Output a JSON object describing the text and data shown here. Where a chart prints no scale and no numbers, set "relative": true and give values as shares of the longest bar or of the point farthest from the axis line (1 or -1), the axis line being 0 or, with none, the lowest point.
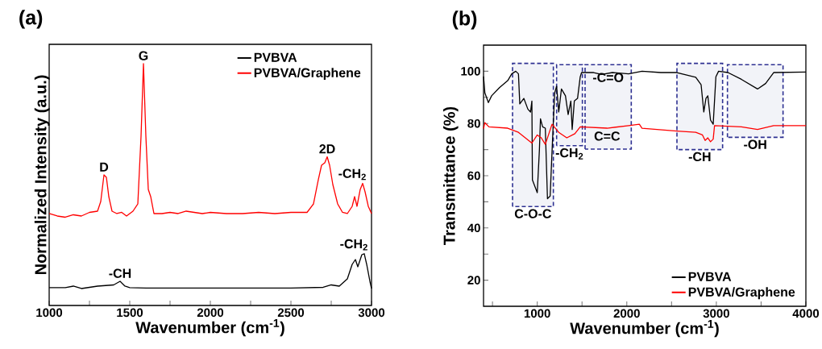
{
  "chart_data": [
    {
      "type": "line",
      "title": "(a)",
      "xlabel": "Wavenumber (cm$^{-1}$)",
      "ylabel": "Normalized Intensity (a.u.)",
      "relative": true,
      "xlim": [
        1000,
        3000
      ],
      "xticks": [
        1000,
        {
          "value": 1250,
          "label": null
        },
        1500,
        {
          "value": 1750,
          "label": null
        },
        2000,
        {
          "value": 2250,
          "label": null
        },
        2500,
        {
          "value": 2750,
          "label": null
        },
        3000
      ],
      "legend": "top right",
      "series": [
        {
          "name": "PVBVA",
          "color": "#000000",
          "x": [
            1000,
            1100,
            1150,
            1200,
            1300,
            1400,
            1440,
            1470,
            1500,
            1600,
            1800,
            2000,
            2200,
            2500,
            2700,
            2750,
            2800,
            2850,
            2880,
            2900,
            2915,
            2940,
            2955,
            2970,
            2990,
            3000
          ],
          "values": [
            0.074,
            0.074,
            0.08,
            0.07,
            0.08,
            0.085,
            0.1,
            0.08,
            0.074,
            0.072,
            0.072,
            0.072,
            0.072,
            0.072,
            0.075,
            0.085,
            0.08,
            0.11,
            0.17,
            0.19,
            0.16,
            0.21,
            0.214,
            0.17,
            0.1,
            0.07
          ]
        },
        {
          "name": "PVBVA/Graphene",
          "color": "#ff0000",
          "x": [
            1000,
            1050,
            1100,
            1150,
            1200,
            1250,
            1300,
            1320,
            1340,
            1355,
            1370,
            1390,
            1420,
            1450,
            1480,
            1520,
            1550,
            1570,
            1585,
            1600,
            1615,
            1630,
            1650,
            1700,
            1750,
            1800,
            1850,
            1900,
            1950,
            2000,
            2100,
            2200,
            2300,
            2400,
            2500,
            2600,
            2640,
            2670,
            2690,
            2710,
            2725,
            2740,
            2760,
            2790,
            2820,
            2850,
            2880,
            2895,
            2910,
            2930,
            2945,
            2960,
            2980,
            3000
          ],
          "values": [
            0.38,
            0.37,
            0.365,
            0.375,
            0.37,
            0.385,
            0.39,
            0.43,
            0.54,
            0.53,
            0.45,
            0.39,
            0.38,
            0.385,
            0.37,
            0.39,
            0.42,
            0.7,
            1.0,
            0.7,
            0.48,
            0.45,
            0.38,
            0.38,
            0.385,
            0.38,
            0.39,
            0.385,
            0.38,
            0.385,
            0.38,
            0.38,
            0.385,
            0.38,
            0.385,
            0.385,
            0.42,
            0.52,
            0.58,
            0.59,
            0.615,
            0.58,
            0.5,
            0.42,
            0.385,
            0.38,
            0.41,
            0.45,
            0.41,
            0.48,
            0.505,
            0.47,
            0.41,
            0.38
          ]
        }
      ],
      "annotations": [
        {
          "text": "G",
          "x": 1585,
          "y": 1.0
        },
        {
          "text": "D",
          "x": 1340,
          "y": 0.54
        },
        {
          "text": "2D",
          "x": 2725,
          "y": 0.615
        },
        {
          "text": "-CH$_{2}$",
          "x": 2945,
          "y": 0.505
        },
        {
          "text": "-CH$_{2}$",
          "x": 2955,
          "y": 0.214
        },
        {
          "text": "-CH",
          "x": 1440,
          "y": 0.1
        }
      ]
    },
    {
      "type": "line",
      "title": "(b)",
      "xlabel": "Wavenumber (cm$^{-1}$)",
      "ylabel": "Transmittance (%)",
      "xlim": [
        400,
        4000
      ],
      "xticks": [
        {
          "value": 500,
          "label": null
        },
        1000,
        {
          "value": 1500,
          "label": null
        },
        2000,
        {
          "value": 2500,
          "label": null
        },
        3000,
        {
          "value": 3500,
          "label": null
        },
        4000
      ],
      "ylim": [
        10,
        110
      ],
      "yticks": [
        20,
        {
          "value": 30,
          "label": null
        },
        40,
        {
          "value": 50,
          "label": null
        },
        60,
        {
          "value": 70,
          "label": null
        },
        80,
        {
          "value": 90,
          "label": null
        },
        100
      ],
      "legend": "bottom right",
      "series": [
        {
          "name": "PVBVA",
          "color": "#000000",
          "x": [
            400,
            415,
            454,
            490,
            580,
            670,
            715,
            760,
            790,
            805,
            850,
            895,
            925,
            940,
            946,
            1000,
            1024,
            1036,
            1060,
            1090,
            1114,
            1144,
            1171,
            1195,
            1216,
            1240,
            1270,
            1315,
            1345,
            1375,
            1390,
            1414,
            1450,
            1480,
            1495,
            1630,
            1720,
            1840,
            2020,
            2170,
            2380,
            2560,
            2770,
            2830,
            2860,
            2884,
            2905,
            2935,
            2965,
            2995,
            3025,
            3130,
            3280,
            3460,
            3550,
            3640,
            4000
          ],
          "values": [
            98,
            91.7,
            88,
            90.6,
            93.8,
            96.4,
            99,
            100,
            99,
            87.5,
            89.6,
            85.5,
            84.4,
            88.6,
            58.4,
            53.5,
            69.9,
            81.8,
            78.7,
            78.2,
            51.2,
            52.2,
            74,
            91.7,
            94.3,
            84.4,
            93.2,
            90.6,
            83.4,
            88.6,
            77.7,
            88.6,
            89.6,
            97.9,
            99.5,
            99.5,
            98.8,
            99.5,
            99,
            100,
            99.5,
            99.5,
            97.7,
            94.8,
            84.4,
            89.6,
            90.6,
            81.3,
            79.7,
            97.9,
            100,
            99.5,
            96.9,
            93.2,
            95.3,
            99.5,
            99.7
          ]
        },
        {
          "name": "PVBVA/Graphene",
          "color": "#ff0000",
          "x": [
            400,
            415,
            460,
            670,
            790,
            940,
            1000,
            1045,
            1090,
            1165,
            1240,
            1330,
            1420,
            1480,
            1780,
            2020,
            2140,
            2170,
            2560,
            2770,
            2845,
            2875,
            2905,
            2935,
            2965,
            2980,
            3280,
            3460,
            3640,
            4000
          ],
          "values": [
            78,
            80.3,
            78.7,
            78.2,
            76.6,
            72.5,
            75.6,
            74.5,
            72,
            79.7,
            76.6,
            74.5,
            76.1,
            78.7,
            78.2,
            79.2,
            79.7,
            78.2,
            77.1,
            76.6,
            75.6,
            73.5,
            74.5,
            73,
            74,
            79.2,
            78.7,
            77.7,
            79.2,
            79.2
          ]
        }
      ],
      "bands": [
        {
          "axis": "x",
          "from": 724,
          "to": 1180,
          "color": "#2e3192",
          "label": "C-O-C"
        },
        {
          "axis": "x",
          "from": 1216,
          "to": 1504,
          "color": "#2e3192",
          "label": "-CH$_{2}$"
        },
        {
          "axis": "x",
          "from": 1534,
          "to": 2050,
          "color": "#2e3192",
          "label": "-C=O"
        },
        {
          "axis": "x",
          "from": 2560,
          "to": 3070,
          "color": "#2e3192",
          "label": "-CH"
        },
        {
          "axis": "x",
          "from": 3124,
          "to": 3745,
          "color": "#2e3192",
          "label": "-OH"
        }
      ],
      "annotations": [
        {
          "text": "C=C",
          "x": 1780,
          "y": 78.2
        }
      ]
    }
  ]
}
